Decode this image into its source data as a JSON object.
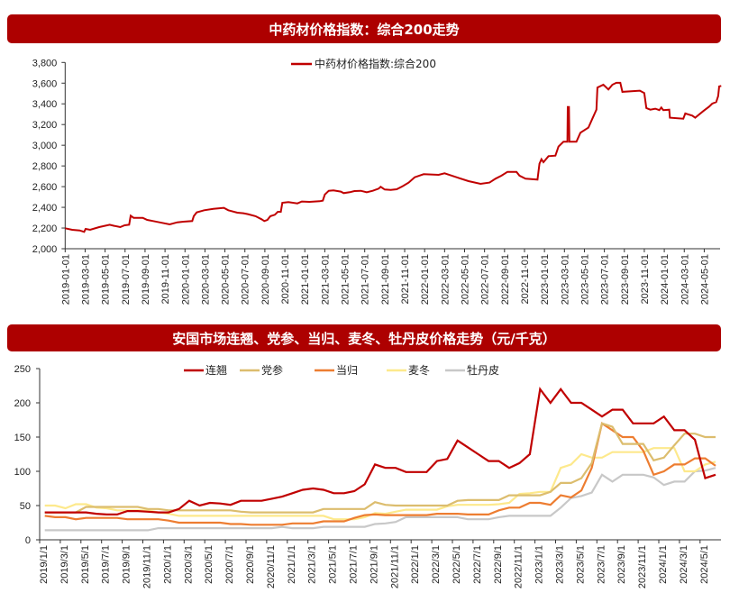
{
  "chart_data": [
    {
      "type": "line",
      "title": "中药材价格指数：综合200走势",
      "legend": [
        "中药材价格指数:综合200"
      ],
      "legend_position": "top-center",
      "ylim": [
        2000,
        3800
      ],
      "yticks": [
        "2,000",
        "2,200",
        "2,400",
        "2,600",
        "2,800",
        "3,000",
        "3,200",
        "3,400",
        "3,600",
        "3,800"
      ],
      "ytick_values": [
        2000,
        2200,
        2400,
        2600,
        2800,
        3000,
        3200,
        3400,
        3600,
        3800
      ],
      "x_unit": "months since 2019-01-01",
      "xticks": [
        "2019-01-01",
        "2019-03-01",
        "2019-05-01",
        "2019-07-01",
        "2019-09-01",
        "2019-11-01",
        "2020-01-01",
        "2020-03-01",
        "2020-05-01",
        "2020-07-01",
        "2020-09-01",
        "2020-11-01",
        "2021-01-01",
        "2021-03-01",
        "2021-05-01",
        "2021-07-01",
        "2021-09-01",
        "2021-11-01",
        "2022-01-01",
        "2022-03-01",
        "2022-05-01",
        "2022-07-01",
        "2022-09-01",
        "2022-11-01",
        "2023-01-01",
        "2023-03-01",
        "2023-05-01",
        "2023-07-01",
        "2023-09-01",
        "2023-11-01",
        "2024-01-01",
        "2024-03-01",
        "2024-05-01"
      ],
      "color": "#c00000",
      "series": [
        {
          "name": "中药材价格指数:综合200",
          "points": [
            [
              0,
              2198
            ],
            [
              0.7,
              2183
            ],
            [
              1.45,
              2177
            ],
            [
              1.9,
              2163
            ],
            [
              2.05,
              2192
            ],
            [
              2.5,
              2183
            ],
            [
              3.4,
              2209
            ],
            [
              4.46,
              2232
            ],
            [
              4.91,
              2221
            ],
            [
              5.51,
              2209
            ],
            [
              5.96,
              2226
            ],
            [
              6.41,
              2232
            ],
            [
              6.56,
              2319
            ],
            [
              6.86,
              2299
            ],
            [
              7.77,
              2299
            ],
            [
              8.21,
              2279
            ],
            [
              8.82,
              2267
            ],
            [
              9.72,
              2250
            ],
            [
              10.47,
              2235
            ],
            [
              11.23,
              2255
            ],
            [
              11.83,
              2261
            ],
            [
              12.73,
              2267
            ],
            [
              12.88,
              2314
            ],
            [
              13.18,
              2352
            ],
            [
              13.93,
              2372
            ],
            [
              14.84,
              2386
            ],
            [
              15.89,
              2395
            ],
            [
              16.34,
              2372
            ],
            [
              17.24,
              2348
            ],
            [
              17.84,
              2343
            ],
            [
              18.29,
              2334
            ],
            [
              19.07,
              2314
            ],
            [
              19.67,
              2285
            ],
            [
              19.95,
              2267
            ],
            [
              20.25,
              2279
            ],
            [
              20.55,
              2314
            ],
            [
              21.0,
              2328
            ],
            [
              21.3,
              2357
            ],
            [
              21.6,
              2357
            ],
            [
              21.75,
              2444
            ],
            [
              22.36,
              2450
            ],
            [
              23.26,
              2438
            ],
            [
              23.7,
              2456
            ],
            [
              24.46,
              2453
            ],
            [
              25.5,
              2459
            ],
            [
              25.8,
              2465
            ],
            [
              26.0,
              2523
            ],
            [
              26.4,
              2560
            ],
            [
              26.87,
              2563
            ],
            [
              27.6,
              2552
            ],
            [
              27.9,
              2537
            ],
            [
              28.5,
              2546
            ],
            [
              28.97,
              2557
            ],
            [
              29.6,
              2560
            ],
            [
              30.2,
              2546
            ],
            [
              30.8,
              2560
            ],
            [
              31.4,
              2581
            ],
            [
              31.6,
              2598
            ],
            [
              32.0,
              2572
            ],
            [
              32.6,
              2569
            ],
            [
              33.2,
              2575
            ],
            [
              33.8,
              2604
            ],
            [
              34.4,
              2639
            ],
            [
              35.0,
              2691
            ],
            [
              35.9,
              2720
            ],
            [
              37.4,
              2714
            ],
            [
              38.0,
              2729
            ],
            [
              39.2,
              2691
            ],
            [
              40.4,
              2653
            ],
            [
              41.6,
              2627
            ],
            [
              42.5,
              2639
            ],
            [
              43.1,
              2677
            ],
            [
              43.7,
              2706
            ],
            [
              44.3,
              2743
            ],
            [
              45.2,
              2743
            ],
            [
              45.5,
              2706
            ],
            [
              46.1,
              2677
            ],
            [
              47.3,
              2668
            ],
            [
              47.5,
              2822
            ],
            [
              47.7,
              2865
            ],
            [
              47.9,
              2836
            ],
            [
              48.4,
              2894
            ],
            [
              49.1,
              2900
            ],
            [
              49.4,
              2987
            ],
            [
              49.9,
              3034
            ],
            [
              50.3,
              3034
            ],
            [
              50.33,
              3370
            ],
            [
              50.45,
              3370
            ],
            [
              50.5,
              3034
            ],
            [
              51.2,
              3034
            ],
            [
              51.6,
              3121
            ],
            [
              52.4,
              3170
            ],
            [
              52.8,
              3257
            ],
            [
              53.2,
              3344
            ],
            [
              53.3,
              3557
            ],
            [
              53.9,
              3585
            ],
            [
              54.4,
              3539
            ],
            [
              54.8,
              3585
            ],
            [
              55.2,
              3603
            ],
            [
              55.6,
              3603
            ],
            [
              55.8,
              3516
            ],
            [
              57.55,
              3527
            ],
            [
              58.0,
              3504
            ],
            [
              58.2,
              3359
            ],
            [
              58.6,
              3344
            ],
            [
              59.1,
              3353
            ],
            [
              59.5,
              3339
            ],
            [
              59.7,
              3365
            ],
            [
              59.9,
              3339
            ],
            [
              60.5,
              3344
            ],
            [
              60.56,
              3266
            ],
            [
              61.9,
              3257
            ],
            [
              62.1,
              3307
            ],
            [
              62.8,
              3286
            ],
            [
              63.1,
              3266
            ],
            [
              63.9,
              3330
            ],
            [
              64.5,
              3374
            ],
            [
              64.8,
              3402
            ],
            [
              65.2,
              3417
            ],
            [
              65.4,
              3475
            ],
            [
              65.5,
              3568
            ],
            [
              65.7,
              3574
            ]
          ]
        }
      ]
    },
    {
      "type": "line",
      "title": "安国市场连翘、党参、当归、麦冬、牡丹皮价格走势（元/千克）",
      "legend_position": "top-center",
      "ylim": [
        0,
        250
      ],
      "yticks": [
        "0",
        "50",
        "100",
        "150",
        "200",
        "250"
      ],
      "ytick_values": [
        0,
        50,
        100,
        150,
        200,
        250
      ],
      "x_unit": "monthly, 2019/1 to 2024/6",
      "xticks": [
        "2019/1/1",
        "2019/3/1",
        "2019/5/1",
        "2019/7/1",
        "2019/9/1",
        "2019/11/1",
        "2020/1/1",
        "2020/3/1",
        "2020/5/1",
        "2020/7/1",
        "2020/9/1",
        "2020/11/1",
        "2021/1/1",
        "2021/3/1",
        "2021/5/1",
        "2021/7/1",
        "2021/9/1",
        "2021/11/1",
        "2022/1/1",
        "2022/3/1",
        "2022/5/1",
        "2022/7/1",
        "2022/9/1",
        "2022/11/1",
        "2023/1/1",
        "2023/3/1",
        "2023/5/1",
        "2023/7/1",
        "2023/9/1",
        "2023/11/1",
        "2024/1/1",
        "2024/3/1",
        "2024/5/1"
      ],
      "series": [
        {
          "name": "连翘",
          "color": "#c00000",
          "values": [
            40,
            40,
            40,
            40,
            40,
            38,
            37,
            37,
            42,
            42,
            41,
            40,
            40,
            45,
            57,
            50,
            54,
            53,
            51,
            57,
            57,
            57,
            60,
            63,
            68,
            73,
            75,
            73,
            68,
            68,
            71,
            81,
            110,
            105,
            105,
            99,
            99,
            99,
            115,
            118,
            145,
            135,
            125,
            115,
            115,
            105,
            112,
            125,
            220,
            200,
            220,
            200,
            200,
            190,
            180,
            190,
            190,
            170,
            170,
            170,
            180,
            160,
            160,
            146,
            90,
            95
          ]
        },
        {
          "name": "党参",
          "color": "#dcbd6e",
          "values": [
            40,
            40,
            40,
            40,
            48,
            48,
            48,
            48,
            48,
            48,
            45,
            45,
            43,
            43,
            43,
            43,
            43,
            43,
            43,
            41,
            40,
            40,
            40,
            40,
            40,
            40,
            40,
            45,
            45,
            45,
            45,
            45,
            55,
            51,
            50,
            50,
            50,
            50,
            50,
            50,
            57,
            58,
            58,
            58,
            58,
            65,
            65,
            65,
            65,
            70,
            83,
            83,
            90,
            112,
            170,
            165,
            140,
            140,
            140,
            116,
            120,
            138,
            155,
            155,
            150,
            150
          ]
        },
        {
          "name": "当归",
          "color": "#ed7d31",
          "values": [
            35,
            33,
            33,
            30,
            32,
            32,
            32,
            32,
            30,
            30,
            30,
            30,
            28,
            25,
            25,
            25,
            25,
            25,
            23,
            23,
            22,
            22,
            22,
            22,
            24,
            24,
            24,
            27,
            27,
            27,
            32,
            36,
            37,
            36,
            36,
            36,
            36,
            36,
            38,
            38,
            38,
            37,
            37,
            37,
            43,
            47,
            47,
            54,
            54,
            51,
            65,
            62,
            72,
            105,
            170,
            160,
            150,
            150,
            130,
            95,
            100,
            110,
            110,
            119,
            119,
            108
          ]
        },
        {
          "name": "麦冬",
          "color": "#fde98c",
          "values": [
            50,
            50,
            46,
            52,
            52,
            47,
            46,
            43,
            43,
            43,
            43,
            40,
            38,
            35,
            35,
            35,
            35,
            35,
            35,
            35,
            35,
            35,
            35,
            35,
            35,
            35,
            35,
            35,
            30,
            30,
            30,
            33,
            39,
            38,
            41,
            44,
            44,
            44,
            44,
            49,
            51,
            51,
            51,
            51,
            52,
            54,
            67,
            68,
            70,
            70,
            105,
            110,
            125,
            120,
            120,
            128,
            128,
            128,
            128,
            134,
            134,
            134,
            100,
            100,
            110,
            114
          ]
        },
        {
          "name": "牡丹皮",
          "color": "#c8c8c8",
          "values": [
            14,
            14,
            14,
            14,
            14,
            14,
            14,
            14,
            14,
            14,
            14,
            17,
            17,
            17,
            17,
            17,
            17,
            17,
            17,
            17,
            17,
            17,
            17,
            19,
            17,
            17,
            17,
            19,
            19,
            19,
            19,
            19,
            23,
            24,
            26,
            33,
            33,
            33,
            33,
            33,
            33,
            30,
            30,
            30,
            33,
            35,
            35,
            35,
            35,
            35,
            47,
            61,
            64,
            69,
            95,
            85,
            95,
            95,
            95,
            91,
            80,
            85,
            85,
            100,
            101,
            105
          ]
        }
      ]
    }
  ]
}
